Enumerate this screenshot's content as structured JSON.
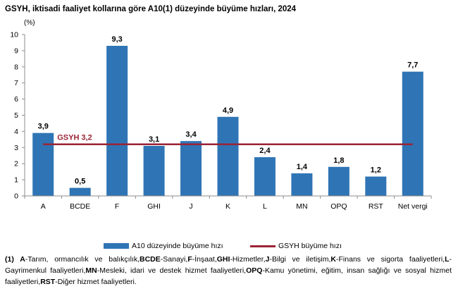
{
  "title": "GSYH, iktisadi faaliyet kollarına göre A10(1) düzeyinde büyüme hızları, 2024",
  "unit": "(%)",
  "colors": {
    "bar": "#2f75b5",
    "line": "#9b2335",
    "axis": "#8c8c8c"
  },
  "chart_data": {
    "type": "bar",
    "categories": [
      "A",
      "BCDE",
      "F",
      "GHI",
      "J",
      "K",
      "L",
      "MN",
      "OPQ",
      "RST",
      "Net vergi"
    ],
    "series": [
      {
        "name": "A10 düzeyinde büyüme hızı",
        "values": [
          3.9,
          0.5,
          9.3,
          3.1,
          3.4,
          4.9,
          2.4,
          1.4,
          1.8,
          1.2,
          7.7
        ],
        "labels": [
          "3,9",
          "0,5",
          "9,3",
          "3,1",
          "3,4",
          "4,9",
          "2,4",
          "1,4",
          "1,8",
          "1,2",
          "7,7"
        ]
      },
      {
        "name": "GSYH büyüme hızı",
        "type": "line",
        "value": 3.2
      }
    ],
    "reference_label": "GSYH 3,2",
    "ylim": [
      0,
      10
    ],
    "yticks": [
      "0",
      "1",
      "2",
      "3",
      "4",
      "5",
      "6",
      "7",
      "8",
      "9",
      "10"
    ],
    "legend_position": "bottom"
  },
  "footnote": [
    {
      "b": "(1) A",
      "t": "-Tarım, ormancılık ve balıkçılık,"
    },
    {
      "b": "BCDE",
      "t": "-Sanayi,"
    },
    {
      "b": "F",
      "t": "-İnşaat,"
    },
    {
      "b": "GHI",
      "t": "-Hizmetler,"
    },
    {
      "b": "J",
      "t": "-Bilgi ve iletişim,"
    },
    {
      "b": "K",
      "t": "-Finans ve sigorta faaliyetleri,"
    },
    {
      "b": "L",
      "t": "-Gayrimenkul faaliyetleri,"
    },
    {
      "b": "MN",
      "t": "-Mesleki, idari ve destek hizmet faaliyetleri,"
    },
    {
      "b": "OPQ",
      "t": "-Kamu yönetimi, eğitim, insan sağlığı ve sosyal hizmet faaliyetleri,"
    },
    {
      "b": "RST",
      "t": "-Diğer hizmet faaliyetleri."
    }
  ]
}
